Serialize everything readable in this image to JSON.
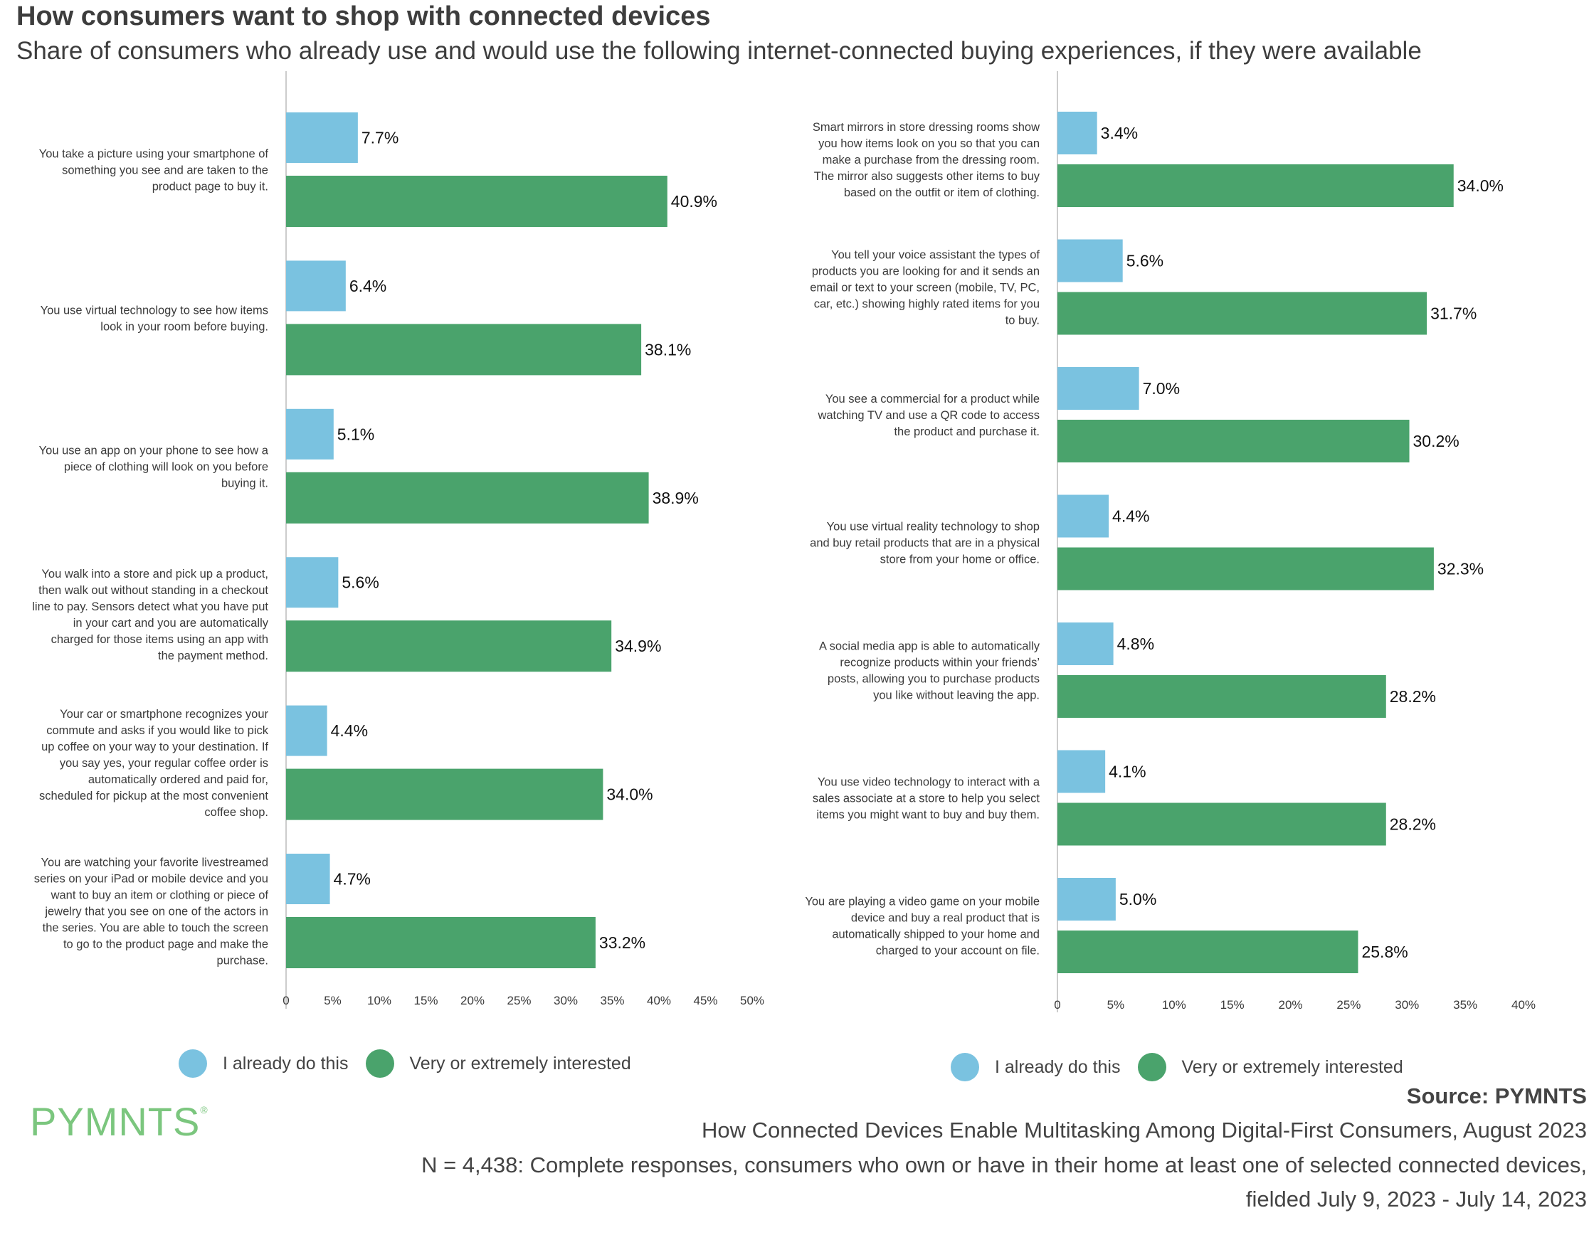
{
  "title": "How consumers want to shop with connected devices",
  "subtitle": "Share of consumers who already use and would use the following internet-connected buying experiences, if they were available",
  "colors": {
    "already": "#7ac2e0",
    "interested": "#4aa36c",
    "axis": "#cccccc",
    "logo": "#7bc67e"
  },
  "legend": {
    "already": "I already do this",
    "interested": "Very or extremely interested"
  },
  "logo": {
    "text": "PYMNTS",
    "mark": "®"
  },
  "footer": {
    "source": "Source: PYMNTS",
    "report": "How Connected Devices Enable Multitasking Among Digital-First Consumers, August 2023",
    "note_line1": "N = 4,438: Complete responses, consumers who own or have in their home at least one of selected connected devices,",
    "note_line2": "fielded July 9, 2023 - July 14, 2023"
  },
  "chart_data": [
    {
      "type": "bar",
      "orientation": "horizontal",
      "series_names": [
        "I already do this",
        "Very or extremely interested"
      ],
      "categories": [
        [
          "You take a picture using your smartphone of",
          "something you see and are taken to the",
          "product page to buy it."
        ],
        [
          "You use virtual technology to see how items",
          "look in your room before buying."
        ],
        [
          "You use an app on your phone to see how a",
          "piece of clothing will look on you before",
          "buying it."
        ],
        [
          "You walk into a store and pick up a product,",
          "then walk out without standing in a checkout",
          "line to pay. Sensors detect what you have put",
          "in your cart and you are automatically",
          "charged for those items using an app with",
          "the payment method."
        ],
        [
          "Your car or smartphone recognizes your",
          "commute and asks if you would like to pick",
          "up coffee on your way to your destination. If",
          "you say yes, your regular coffee order is",
          "automatically ordered and paid for,",
          "scheduled for pickup at the most convenient",
          "coffee shop."
        ],
        [
          "You are watching your favorite livestreamed",
          "series on your iPad or mobile device and you",
          "want to buy an item or clothing or piece of",
          "jewelry that you see on one of the actors in",
          "the series. You are able to touch the screen",
          "to go to the product page and make the",
          "purchase."
        ]
      ],
      "already": [
        7.7,
        6.4,
        5.1,
        5.6,
        4.4,
        4.7
      ],
      "interested": [
        40.9,
        38.1,
        38.9,
        34.9,
        34.0,
        33.2
      ],
      "already_labels": [
        "7.7%",
        "6.4%",
        "5.1%",
        "5.6%",
        "4.4%",
        "4.7%"
      ],
      "interested_labels": [
        "40.9%",
        "38.1%",
        "38.9%",
        "34.9%",
        "34.0%",
        "33.2%"
      ],
      "xlim": [
        0,
        50
      ],
      "ticks": [
        0,
        5,
        10,
        15,
        20,
        25,
        30,
        35,
        40,
        45,
        50
      ],
      "tick_labels": [
        "0",
        "5%",
        "10%",
        "15%",
        "20%",
        "25%",
        "30%",
        "35%",
        "40%",
        "45%",
        "50%"
      ],
      "legend_position": "bottom"
    },
    {
      "type": "bar",
      "orientation": "horizontal",
      "series_names": [
        "I already do this",
        "Very or extremely interested"
      ],
      "categories": [
        [
          "Smart mirrors in store dressing rooms show",
          "you how items look on you so that you can",
          "make a purchase from the dressing room.",
          "The mirror also suggests other items to buy",
          "based on the outfit or item of clothing."
        ],
        [
          "You tell your voice assistant the types of",
          "products you are looking for and it sends an",
          "email or text to your screen (mobile, TV, PC,",
          "car, etc.) showing highly rated items for you",
          "to buy."
        ],
        [
          "You see a commercial for a product while",
          "watching TV and use a QR code to access",
          "the product and purchase it."
        ],
        [
          "You use virtual reality technology to shop",
          "and buy retail products that are in a physical",
          "store from your home or office."
        ],
        [
          "A social media app is able to automatically",
          "recognize products within your friends’",
          "posts, allowing you to purchase products",
          "you like without leaving the app."
        ],
        [
          "You use video technology to interact with a",
          "sales associate at a store to help you select",
          "items you might want to buy and buy them."
        ],
        [
          "You are playing a video game on your mobile",
          "device and buy a real product that is",
          "automatically shipped to your home and",
          "charged to your account on file."
        ]
      ],
      "already": [
        3.4,
        5.6,
        7.0,
        4.4,
        4.8,
        4.1,
        5.0
      ],
      "interested": [
        34.0,
        31.7,
        30.2,
        32.3,
        28.2,
        28.2,
        25.8
      ],
      "already_labels": [
        "3.4%",
        "5.6%",
        "7.0%",
        "4.4%",
        "4.8%",
        "4.1%",
        "5.0%"
      ],
      "interested_labels": [
        "34.0%",
        "31.7%",
        "30.2%",
        "32.3%",
        "28.2%",
        "28.2%",
        "25.8%"
      ],
      "xlim": [
        0,
        40
      ],
      "ticks": [
        0,
        5,
        10,
        15,
        20,
        25,
        30,
        35,
        40
      ],
      "tick_labels": [
        "0",
        "5%",
        "10%",
        "15%",
        "20%",
        "25%",
        "30%",
        "35%",
        "40%"
      ],
      "legend_position": "bottom"
    }
  ]
}
